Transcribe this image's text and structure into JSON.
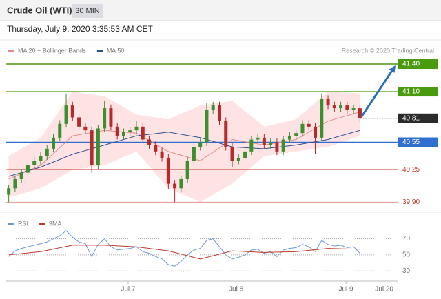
{
  "header": {
    "title": "Crude Oil (WTI)",
    "timeframe": "30 MIN",
    "datetime": "Thursday, July 9, 2020 3:35:53 AM CET"
  },
  "chart_data": [
    {
      "type": "candlestick",
      "source": "Research © 2020 Trading Central",
      "xlim": [
        -0.5,
        61
      ],
      "ylim": [
        39.85,
        41.46
      ],
      "up_color": "#3c8f2f",
      "down_color": "#b52a2a",
      "open": [
        39.98,
        40.05,
        40.15,
        40.22,
        40.3,
        40.35,
        40.4,
        40.48,
        40.6,
        40.75,
        40.95,
        40.82,
        40.72,
        40.68,
        40.3,
        40.7,
        40.92,
        40.72,
        40.62,
        40.66,
        40.68,
        40.72,
        40.58,
        40.52,
        40.45,
        40.38,
        40.1,
        40.05,
        40.15,
        40.35,
        40.5,
        40.55,
        40.9,
        40.95,
        40.78,
        40.5,
        40.35,
        40.38,
        40.45,
        40.58,
        40.6,
        40.52,
        40.55,
        40.45,
        40.58,
        40.62,
        40.65,
        40.75,
        40.72,
        40.6,
        41.02,
        40.95,
        40.92,
        40.95,
        40.9,
        40.92
      ],
      "high": [
        40.09,
        40.19,
        40.26,
        40.34,
        40.39,
        40.44,
        40.52,
        40.64,
        40.79,
        41.08,
        40.99,
        40.86,
        40.76,
        40.72,
        40.74,
        41.0,
        40.96,
        40.76,
        40.7,
        40.72,
        40.78,
        40.76,
        40.62,
        40.56,
        40.49,
        40.42,
        40.14,
        40.19,
        40.39,
        40.54,
        40.59,
        40.98,
        40.99,
        40.99,
        40.82,
        40.54,
        40.42,
        40.49,
        40.62,
        40.64,
        40.64,
        40.59,
        40.59,
        40.62,
        40.66,
        40.69,
        40.79,
        40.79,
        40.76,
        41.08,
        41.06,
        40.99,
        40.99,
        40.99,
        40.96,
        40.96
      ],
      "low": [
        39.9,
        40.01,
        40.11,
        40.18,
        40.26,
        40.31,
        40.36,
        40.44,
        40.56,
        40.71,
        40.78,
        40.68,
        40.64,
        40.22,
        40.26,
        40.66,
        40.68,
        40.58,
        40.58,
        40.62,
        40.64,
        40.54,
        40.48,
        40.41,
        40.34,
        40.04,
        39.9,
        40.01,
        40.11,
        40.31,
        40.46,
        40.51,
        40.86,
        40.74,
        40.46,
        40.28,
        40.31,
        40.34,
        40.41,
        40.54,
        40.48,
        40.48,
        40.41,
        40.41,
        40.54,
        40.58,
        40.61,
        40.68,
        40.42,
        40.56,
        40.91,
        40.88,
        40.88,
        40.86,
        40.86,
        40.77
      ],
      "close": [
        40.05,
        40.15,
        40.22,
        40.3,
        40.35,
        40.4,
        40.48,
        40.6,
        40.75,
        40.95,
        40.82,
        40.72,
        40.68,
        40.3,
        40.7,
        40.92,
        40.72,
        40.62,
        40.66,
        40.68,
        40.72,
        40.58,
        40.52,
        40.45,
        40.38,
        40.1,
        40.05,
        40.15,
        40.35,
        40.5,
        40.55,
        40.9,
        40.95,
        40.78,
        40.5,
        40.35,
        40.38,
        40.45,
        40.58,
        40.6,
        40.52,
        40.55,
        40.45,
        40.58,
        40.62,
        40.65,
        40.75,
        40.72,
        40.6,
        41.02,
        40.95,
        40.92,
        40.95,
        40.9,
        40.92,
        40.81
      ],
      "series": [
        {
          "name": "MA 20 + Bollinger Bands",
          "color": "#e58a8a",
          "band_color": "#fde3e3",
          "x": [
            0,
            5,
            10,
            15,
            20,
            25,
            30,
            35,
            40,
            45,
            50,
            55
          ],
          "values": [
            40.15,
            40.3,
            40.62,
            40.68,
            40.65,
            40.45,
            40.35,
            40.58,
            40.52,
            40.58,
            40.78,
            40.88
          ],
          "upper": [
            40.4,
            40.6,
            41.1,
            41.05,
            40.85,
            40.8,
            40.95,
            41.0,
            40.72,
            40.8,
            41.1,
            41.08
          ],
          "lower": [
            39.95,
            40.05,
            40.25,
            40.3,
            40.45,
            40.05,
            39.9,
            40.1,
            40.4,
            40.45,
            40.5,
            40.62
          ]
        },
        {
          "name": "MA 50",
          "color": "#2f4f8f",
          "x": [
            0,
            5,
            10,
            15,
            20,
            25,
            30,
            35,
            40,
            45,
            50,
            55
          ],
          "values": [
            40.18,
            40.28,
            40.42,
            40.52,
            40.62,
            40.66,
            40.6,
            40.5,
            40.48,
            40.52,
            40.58,
            40.68
          ]
        }
      ],
      "levels": [
        {
          "value": 41.4,
          "label": "41.40",
          "color": "#4a9a0e",
          "style": "box"
        },
        {
          "value": 41.1,
          "label": "41.10",
          "color": "#4a9a0e",
          "style": "box"
        },
        {
          "value": 40.55,
          "label": "40.55",
          "color": "#2f6fd0",
          "style": "box"
        },
        {
          "value": 40.25,
          "label": "40.25",
          "color": "#c0392b",
          "style": "text"
        },
        {
          "value": 39.9,
          "label": "39.90",
          "color": "#c0392b",
          "style": "text"
        }
      ],
      "current": {
        "value": 40.81,
        "label": "40.81",
        "color": "#2b2b2b"
      }
    },
    {
      "type": "line",
      "xlim": [
        -0.5,
        61
      ],
      "ylim": [
        20,
        97
      ],
      "yticks": [
        30,
        50,
        70
      ],
      "xticks": [
        {
          "value": 18.7,
          "label": "Jul 7"
        },
        {
          "value": 35.6,
          "label": "Jul 8"
        },
        {
          "value": 52.8,
          "label": "Jul 9"
        },
        {
          "value": 58.8,
          "label": "Jul 20"
        }
      ],
      "series": [
        {
          "name": "RSI",
          "color": "#6a98d4",
          "values": [
            48,
            55,
            58,
            60,
            62,
            64,
            66,
            70,
            74,
            80,
            72,
            66,
            64,
            48,
            63,
            70,
            60,
            56,
            57,
            58,
            60,
            54,
            52,
            48,
            45,
            38,
            36,
            42,
            50,
            56,
            58,
            68,
            70,
            60,
            50,
            45,
            47,
            50,
            56,
            57,
            52,
            54,
            48,
            56,
            58,
            59,
            63,
            60,
            54,
            68,
            63,
            61,
            62,
            59,
            60,
            52
          ]
        },
        {
          "name": "9MA",
          "color": "#c0392b",
          "x": [
            0,
            5,
            10,
            15,
            20,
            25,
            30,
            35,
            40,
            45,
            50,
            55
          ],
          "values": [
            50,
            54,
            62,
            62,
            60,
            55,
            45,
            55,
            53,
            54,
            58,
            57
          ]
        }
      ]
    }
  ]
}
